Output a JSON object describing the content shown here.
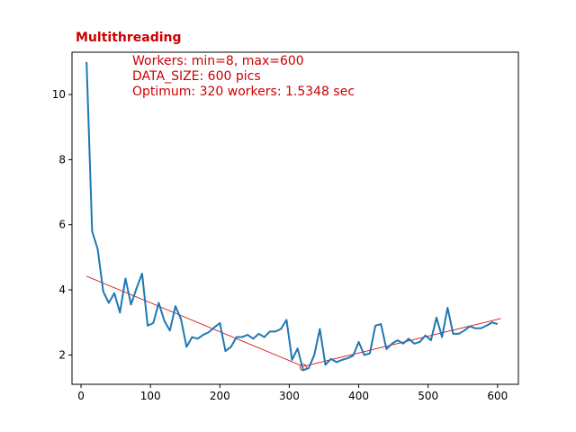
{
  "chart_data": {
    "type": "line",
    "title": "Multithreading",
    "xlabel": "",
    "ylabel": "",
    "xlim": [
      -13,
      630
    ],
    "ylim": [
      1.1,
      11.3
    ],
    "xticks": [
      0,
      100,
      200,
      300,
      400,
      500,
      600
    ],
    "yticks": [
      2,
      4,
      6,
      8,
      10
    ],
    "grid": false,
    "colors": {
      "series": "#1f77b4",
      "trend": "#cc0000",
      "title": "#cc0000",
      "annotation": "#cc0000"
    },
    "annotations": [
      "Workers: min=8, max=600",
      "DATA_SIZE: 600 pics",
      "Optimum: 320 workers: 1.5348 sec"
    ],
    "series": [
      {
        "x": [
          8,
          16,
          24,
          32,
          40,
          48,
          56,
          64,
          72,
          80,
          88,
          96,
          104,
          112,
          120,
          128,
          136,
          144,
          152,
          160,
          168,
          176,
          184,
          192,
          200,
          208,
          216,
          224,
          232,
          240,
          248,
          256,
          264,
          272,
          280,
          288,
          296,
          304,
          312,
          320,
          328,
          336,
          344,
          352,
          360,
          368,
          376,
          384,
          392,
          400,
          408,
          416,
          424,
          432,
          440,
          448,
          456,
          464,
          472,
          480,
          488,
          496,
          504,
          512,
          520,
          528,
          536,
          544,
          552,
          560,
          568,
          576,
          584,
          592,
          600
        ],
        "y": [
          11.0,
          5.8,
          5.25,
          3.95,
          3.6,
          3.9,
          3.3,
          4.35,
          3.55,
          4.05,
          4.5,
          2.9,
          2.98,
          3.6,
          3.05,
          2.75,
          3.5,
          3.1,
          2.25,
          2.55,
          2.5,
          2.62,
          2.7,
          2.85,
          2.98,
          2.12,
          2.25,
          2.55,
          2.55,
          2.62,
          2.5,
          2.65,
          2.55,
          2.72,
          2.72,
          2.8,
          3.08,
          1.85,
          2.2,
          1.5348,
          1.6,
          2.0,
          2.8,
          1.7,
          1.88,
          1.78,
          1.85,
          1.9,
          1.98,
          2.4,
          2.0,
          2.05,
          2.9,
          2.95,
          2.18,
          2.35,
          2.45,
          2.35,
          2.5,
          2.35,
          2.4,
          2.6,
          2.45,
          3.15,
          2.55,
          3.45,
          2.65,
          2.65,
          2.75,
          2.88,
          2.82,
          2.82,
          2.9,
          3.0,
          2.95
        ]
      }
    ],
    "trend_lines": [
      {
        "x": [
          8,
          320
        ],
        "y": [
          4.42,
          1.65
        ]
      },
      {
        "x": [
          320,
          605
        ],
        "y": [
          1.65,
          3.12
        ]
      }
    ],
    "optimum_marker": {
      "x": 320,
      "y": 1.62
    }
  }
}
